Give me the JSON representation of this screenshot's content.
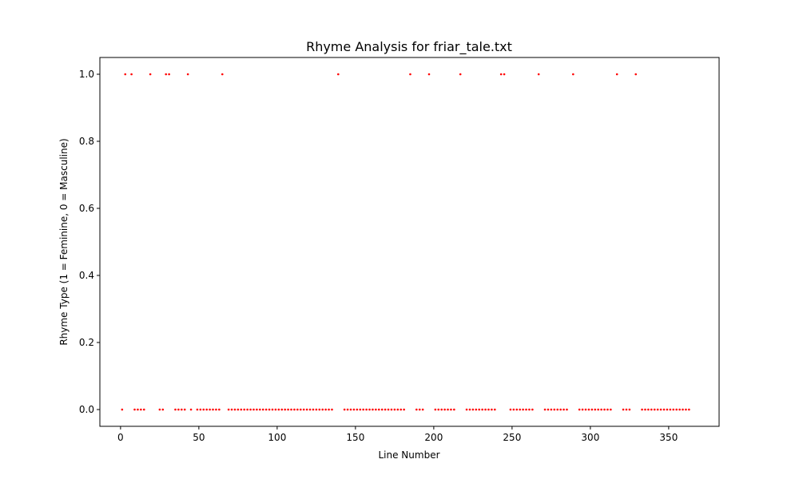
{
  "chart_data": {
    "type": "scatter",
    "title": "Rhyme Analysis for friar_tale.txt",
    "xlabel": "Line Number",
    "ylabel": "Rhyme Type (1 = Feminine, 0 = Masculine)",
    "xlim": [
      -13.2,
      382.2
    ],
    "ylim": [
      -0.05,
      1.05
    ],
    "xticks": [
      0,
      50,
      100,
      150,
      200,
      250,
      300,
      350
    ],
    "yticks": [
      0.0,
      0.2,
      0.4,
      0.6,
      0.8,
      1.0
    ],
    "xtick_labels": [
      "0",
      "50",
      "100",
      "150",
      "200",
      "250",
      "300",
      "350"
    ],
    "ytick_labels": [
      "0.0",
      "0.2",
      "0.4",
      "0.6",
      "0.8",
      "1.0"
    ],
    "grid": false,
    "marker_color": "#ff0000",
    "x_max_line": 364,
    "feminine_lines": [
      3,
      7,
      19,
      29,
      31,
      43,
      65,
      139,
      185,
      197,
      217,
      243,
      245,
      267,
      289,
      317,
      329
    ],
    "masculine_gap_lines": [
      5,
      17,
      21,
      23,
      31,
      33,
      47,
      67,
      137,
      141,
      183,
      187,
      195,
      199,
      215,
      219,
      241,
      247,
      265,
      269,
      287,
      291,
      315,
      319,
      327,
      331
    ]
  }
}
